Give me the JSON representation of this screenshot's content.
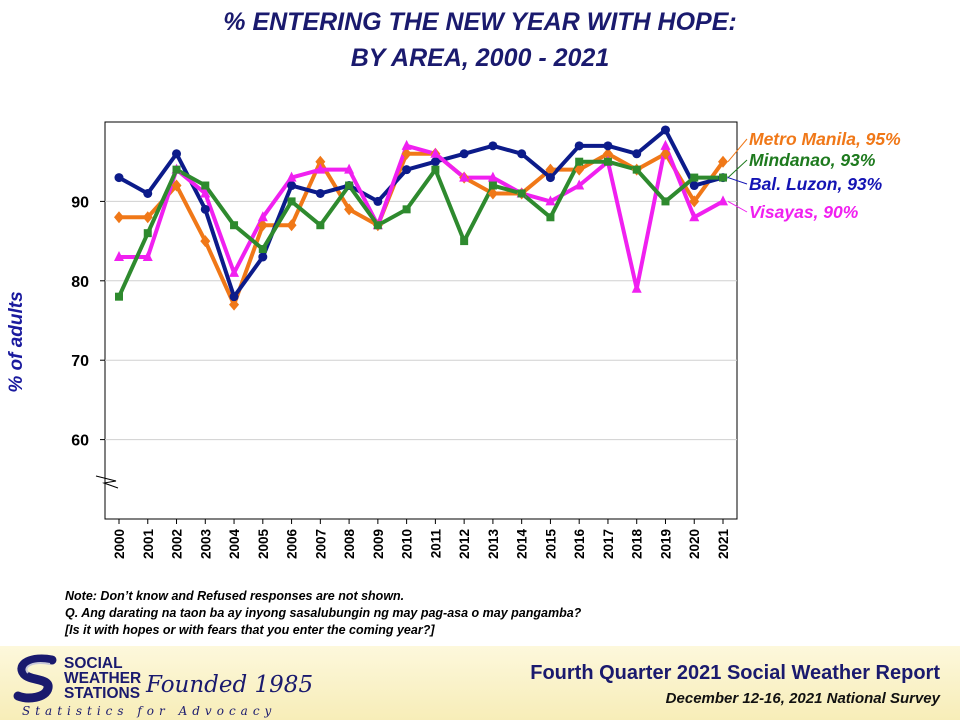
{
  "header": {
    "title_line1": "% ENTERING THE NEW YEAR WITH HOPE:",
    "title_line2": "BY AREA, 2000 - 2021"
  },
  "chart_data": {
    "type": "line",
    "title": "% ENTERING THE NEW YEAR WITH HOPE: BY AREA, 2000 - 2021",
    "ylabel": "% of adults",
    "xlabel": "",
    "categories": [
      "2000",
      "2001",
      "2002",
      "2003",
      "2004",
      "2005",
      "2006",
      "2007",
      "2008",
      "2009",
      "2010",
      "2011",
      "2012",
      "2013",
      "2014",
      "2015",
      "2016",
      "2017",
      "2018",
      "2019",
      "2020",
      "2021"
    ],
    "yticks": [
      60,
      70,
      80,
      90
    ],
    "ylim": [
      50,
      100
    ],
    "grid": true,
    "axis_break": true,
    "series": [
      {
        "name": "Metro Manila",
        "color": "#f07818",
        "marker": "diamond",
        "end_label": "Metro Manila, 95%",
        "values": [
          88,
          88,
          92,
          85,
          77,
          87,
          87,
          95,
          89,
          87,
          96,
          96,
          93,
          91,
          91,
          94,
          94,
          96,
          94,
          96,
          90,
          95
        ]
      },
      {
        "name": "Bal. Luzon",
        "color": "#0c1b8a",
        "marker": "circle",
        "end_label": "Bal. Luzon, 93%",
        "values": [
          93,
          91,
          96,
          89,
          78,
          83,
          92,
          91,
          92,
          90,
          94,
          95,
          96,
          97,
          96,
          93,
          97,
          97,
          96,
          99,
          92,
          93
        ]
      },
      {
        "name": "Visayas",
        "color": "#f020f0",
        "marker": "triangle",
        "end_label": "Visayas, 90%",
        "values": [
          83,
          83,
          94,
          91,
          81,
          88,
          93,
          94,
          94,
          87,
          97,
          96,
          93,
          93,
          91,
          90,
          92,
          95,
          79,
          97,
          88,
          90
        ]
      },
      {
        "name": "Mindanao",
        "color": "#2e8a2e",
        "marker": "square",
        "end_label": "Mindanao, 93%",
        "values": [
          78,
          86,
          94,
          92,
          87,
          84,
          90,
          87,
          92,
          87,
          89,
          94,
          85,
          92,
          91,
          88,
          95,
          95,
          94,
          90,
          93,
          93
        ]
      }
    ]
  },
  "legend_labels": [
    {
      "text": "Metro Manila, 95%",
      "color": "#f07818"
    },
    {
      "text": "Mindanao, 93%",
      "color": "#1e7a1e"
    },
    {
      "text": "Bal. Luzon, 93%",
      "color": "#1414b4"
    },
    {
      "text": "Visayas, 90%",
      "color": "#f020f0"
    }
  ],
  "notes": {
    "line1": "Note: Don’t know and Refused responses are not shown.",
    "line2": "Q. Ang darating na taon ba ay inyong sasalubungin ng may pag-asa o may pangamba?",
    "line3": "[Is it with hopes or with fears that you enter the coming  year?]"
  },
  "footer": {
    "org_line1": "SOCIAL",
    "org_line2": "WEATHER",
    "org_line3": "STATIONS",
    "founded": "Founded 1985",
    "tagline": "Statistics for Advocacy",
    "report": "Fourth Quarter 2021 Social Weather Report",
    "survey": "December 12-16, 2021 National Survey"
  },
  "colors": {
    "title": "#1a1a6e",
    "ylabel": "#1a1a9e",
    "footer_bg": "#f8f0c0"
  }
}
